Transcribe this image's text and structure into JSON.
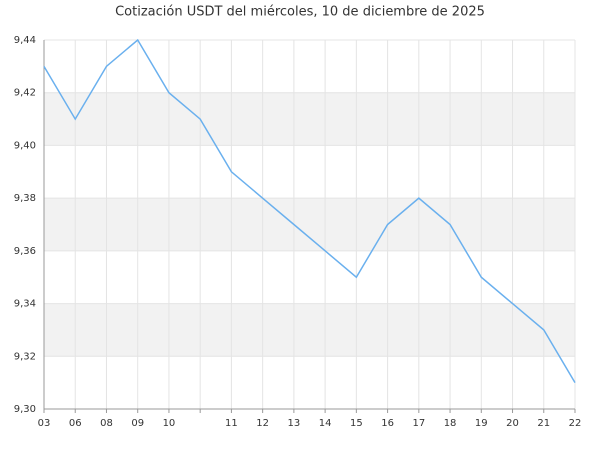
{
  "chart_data": {
    "type": "line",
    "title": "Cotización USDT del miércoles, 10 de diciembre de 2025",
    "categories": [
      "03",
      "06",
      "08",
      "09",
      "10",
      null,
      "11",
      "12",
      "13",
      "14",
      "15",
      "16",
      "17",
      "18",
      "19",
      "20",
      "21",
      "22"
    ],
    "series": [
      {
        "color": "#6ab0ee",
        "values": [
          9.43,
          9.41,
          9.43,
          9.44,
          9.42,
          9.41,
          9.39,
          9.38,
          9.37,
          9.36,
          9.35,
          9.37,
          9.38,
          9.37,
          9.35,
          9.34,
          9.33,
          9.31
        ]
      }
    ],
    "ylim": [
      9.3,
      9.44
    ],
    "yticks": [
      {
        "value": 9.3,
        "label": "9,30"
      },
      {
        "value": 9.32,
        "label": "9,32"
      },
      {
        "value": 9.34,
        "label": "9,34"
      },
      {
        "value": 9.36,
        "label": "9,36"
      },
      {
        "value": 9.38,
        "label": "9,38"
      },
      {
        "value": 9.4,
        "label": "9,40"
      },
      {
        "value": 9.42,
        "label": "9,42"
      },
      {
        "value": 9.44,
        "label": "9,44"
      }
    ],
    "grid": true,
    "bands": true
  }
}
